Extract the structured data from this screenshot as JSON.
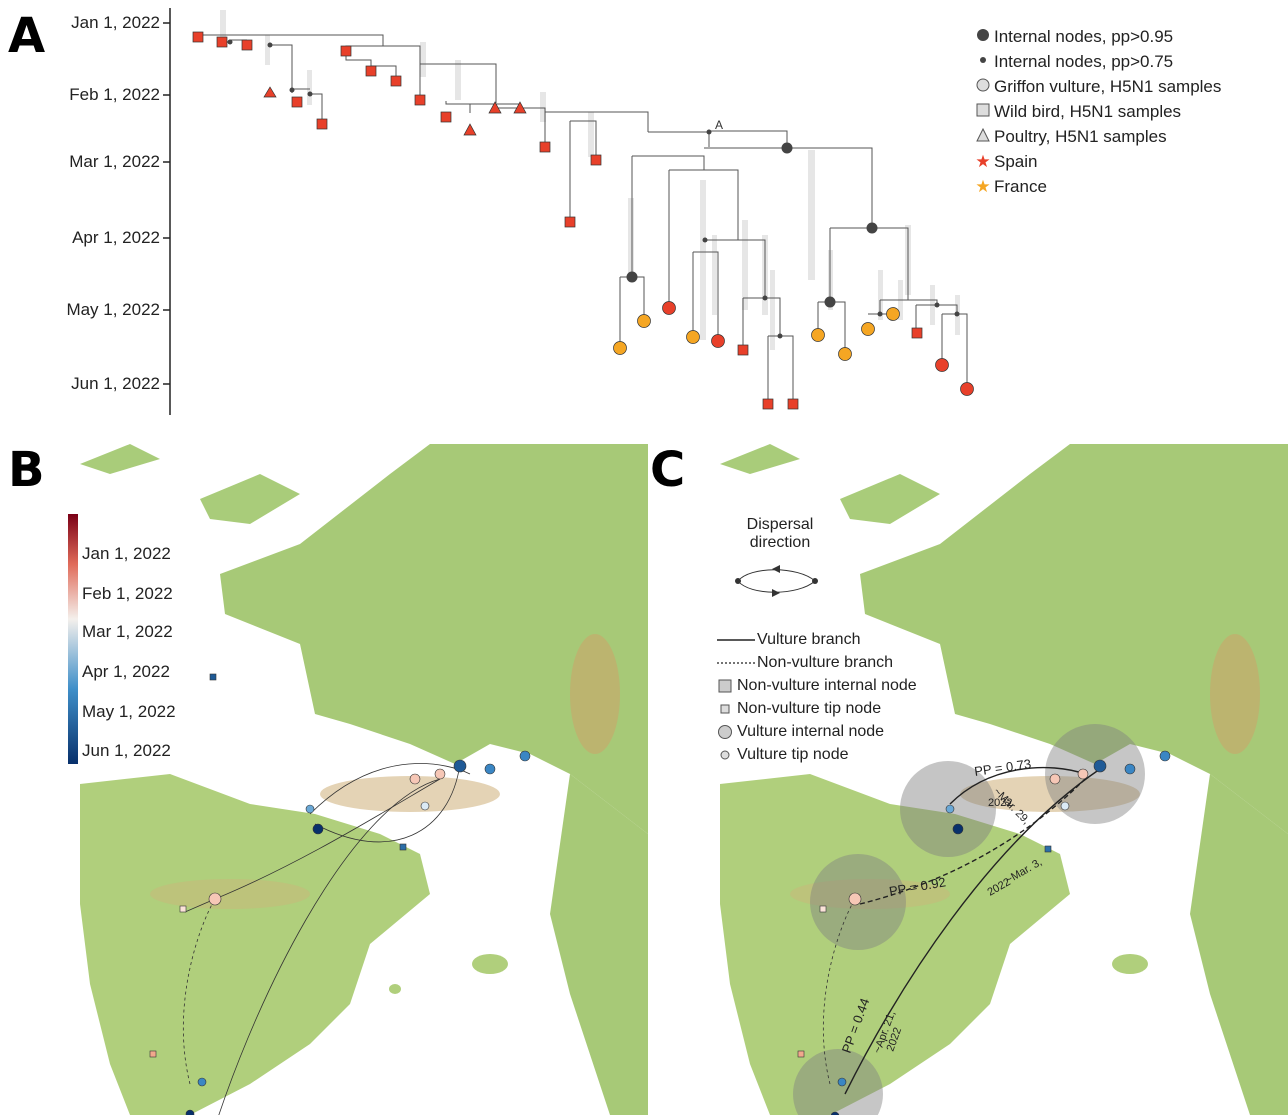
{
  "panels": {
    "a": "A",
    "b": "B",
    "c": "C"
  },
  "tree": {
    "time_axis": [
      "Jan 1, 2022",
      "Feb 1, 2022",
      "Mar 1, 2022",
      "Apr 1, 2022",
      "May 1, 2022",
      "Jun 1, 2022"
    ],
    "node_label": "A",
    "legend": [
      {
        "symbol": "dark-dot-large",
        "label": "Internal nodes, pp>0.95"
      },
      {
        "symbol": "dark-dot-small",
        "label": "Internal nodes, pp>0.75"
      },
      {
        "symbol": "circle",
        "label": "Griffon vulture, H5N1 samples"
      },
      {
        "symbol": "square",
        "label": "Wild bird, H5N1 samples"
      },
      {
        "symbol": "triangle",
        "label": "Poultry, H5N1 samples"
      },
      {
        "symbol": "star-red",
        "label": "Spain"
      },
      {
        "symbol": "star-orange",
        "label": "France"
      }
    ],
    "colors": {
      "spain": "#e8402a",
      "france": "#f5a623",
      "node": "#444444",
      "branch": "#555555"
    }
  },
  "colorbar": {
    "ticks": [
      "Jan 1, 2022",
      "Feb 1, 2022",
      "Mar 1, 2022",
      "Apr 1, 2022",
      "May 1, 2022",
      "Jun 1, 2022"
    ]
  },
  "panel_c": {
    "dispersal_title": "Dispersal direction",
    "legend": [
      {
        "symbol": "solid-line",
        "label": "Vulture branch"
      },
      {
        "symbol": "dashed-line",
        "label": "Non-vulture branch"
      },
      {
        "symbol": "square-large",
        "label": "Non-vulture internal node"
      },
      {
        "symbol": "square-small",
        "label": "Non-vulture tip node"
      },
      {
        "symbol": "circle-large",
        "label": "Vulture internal node"
      },
      {
        "symbol": "circle-small",
        "label": "Vulture tip node"
      }
    ],
    "annotations": [
      {
        "pp": "PP = 0.73",
        "date": "~Mar. 29,",
        "year": "2022"
      },
      {
        "pp": "PP = 0.92",
        "date": "~Mar. 3,",
        "year": "2022"
      },
      {
        "pp": "PP = 0.44",
        "date": "~Apr. 21,",
        "year": "2022"
      }
    ]
  }
}
